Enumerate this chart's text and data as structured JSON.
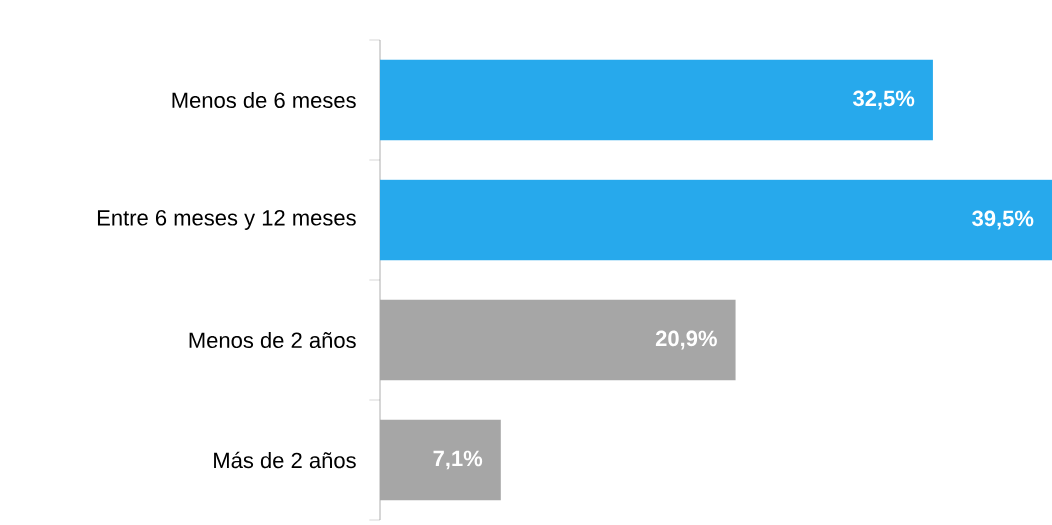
{
  "chart_data": {
    "type": "bar",
    "orientation": "horizontal",
    "categories": [
      "Menos de 6 meses",
      "Entre 6 meses y 12 meses",
      "Menos de 2 años",
      "Más de 2 años"
    ],
    "values": [
      32.5,
      39.5,
      20.9,
      7.1
    ],
    "value_labels": [
      "32,5%",
      "39,5%",
      "20,9%",
      "7,1%"
    ],
    "colors": [
      "#27a9ec",
      "#27a9ec",
      "#a6a6a6",
      "#a6a6a6"
    ]
  }
}
